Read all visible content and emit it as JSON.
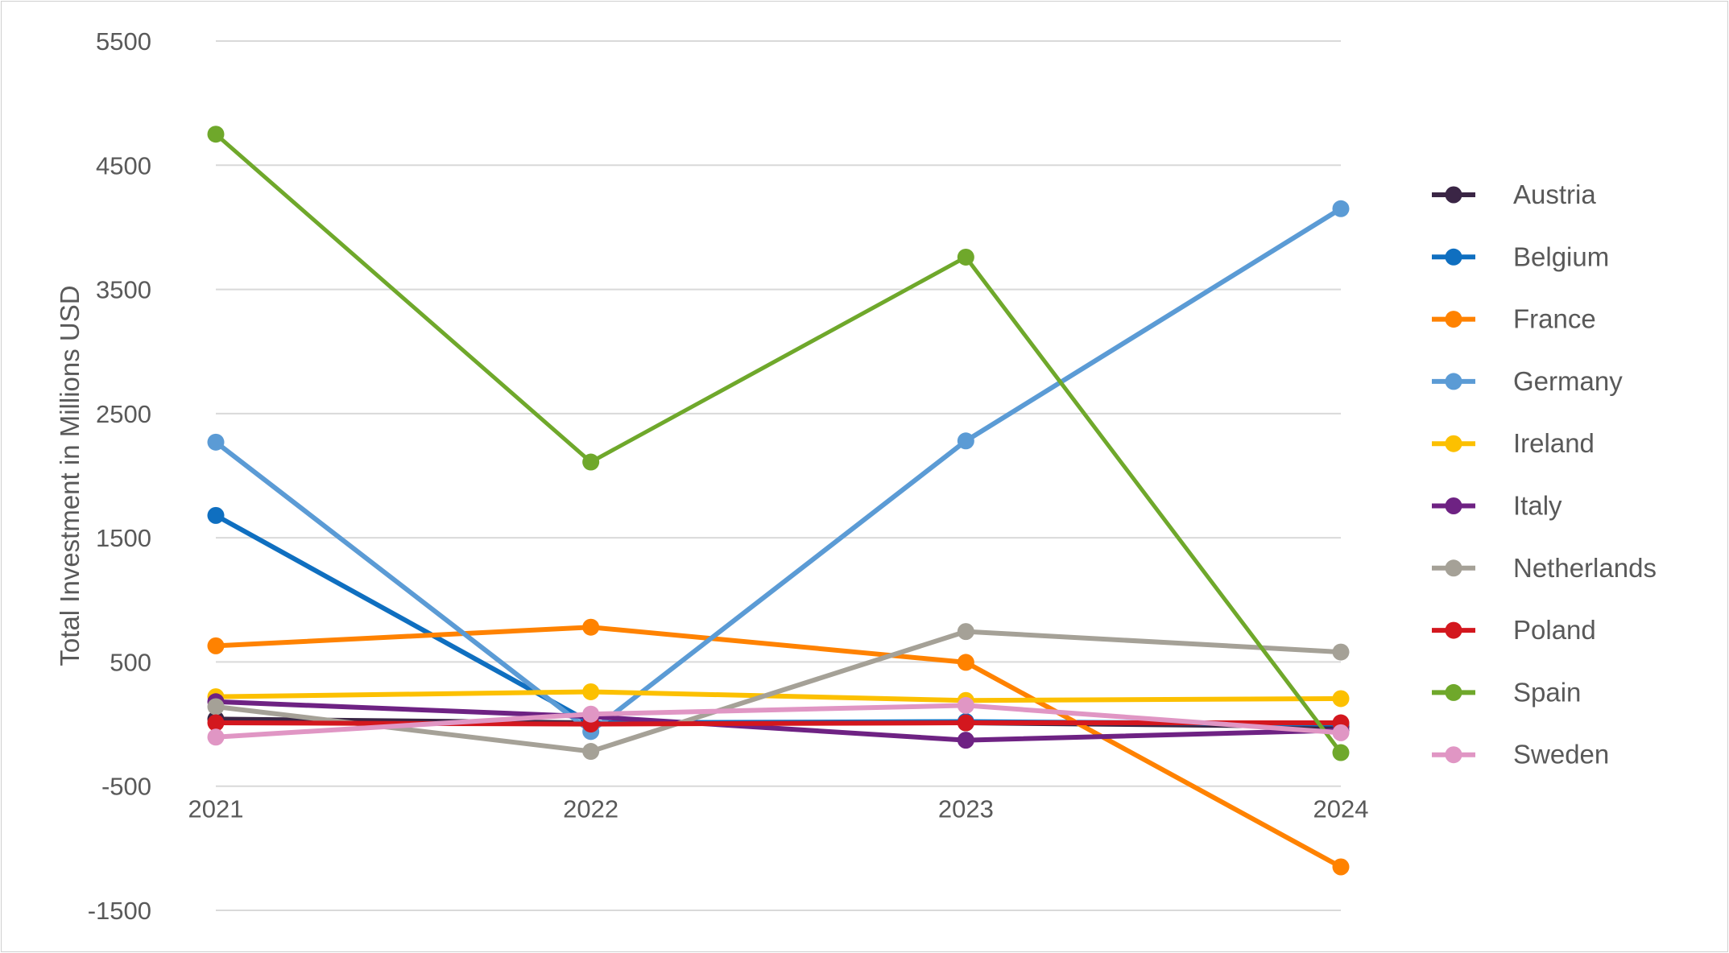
{
  "chart_data": {
    "type": "line",
    "title": "",
    "xlabel": "",
    "ylabel": "Total Investment in Millions USD",
    "categories": [
      "2021",
      "2022",
      "2023",
      "2024"
    ],
    "ylim": [
      -1500,
      5500
    ],
    "yticks": [
      "5500",
      "4500",
      "3500",
      "2500",
      "1500",
      "500",
      "-500",
      "-1500"
    ],
    "ytick_values": [
      5500,
      4500,
      3500,
      2500,
      1500,
      500,
      -500,
      -1500
    ],
    "grid": true,
    "legend_position": "right",
    "series": [
      {
        "name": "Austria",
        "color": "#3a2545",
        "values": [
          40,
          10,
          10,
          -20
        ]
      },
      {
        "name": "Belgium",
        "color": "#0f6fc0",
        "values": [
          1680,
          10,
          20,
          0
        ]
      },
      {
        "name": "France",
        "color": "#ff8200",
        "values": [
          630,
          780,
          497,
          -1150
        ]
      },
      {
        "name": "Germany",
        "color": "#5b9bd5",
        "values": [
          2270,
          -60,
          2280,
          4150
        ]
      },
      {
        "name": "Ireland",
        "color": "#fcc000",
        "values": [
          220,
          260,
          190,
          205
        ]
      },
      {
        "name": "Italy",
        "color": "#6e2283",
        "values": [
          180,
          60,
          -130,
          -50
        ]
      },
      {
        "name": "Netherlands",
        "color": "#a5a197",
        "values": [
          140,
          -220,
          745,
          580
        ]
      },
      {
        "name": "Poland",
        "color": "#d3171e",
        "values": [
          10,
          0,
          10,
          10
        ]
      },
      {
        "name": "Spain",
        "color": "#6fa82b",
        "values": [
          4750,
          2110,
          3760,
          -230
        ]
      },
      {
        "name": "Sweden",
        "color": "#e096c4",
        "values": [
          -105,
          80,
          150,
          -70
        ]
      }
    ]
  }
}
